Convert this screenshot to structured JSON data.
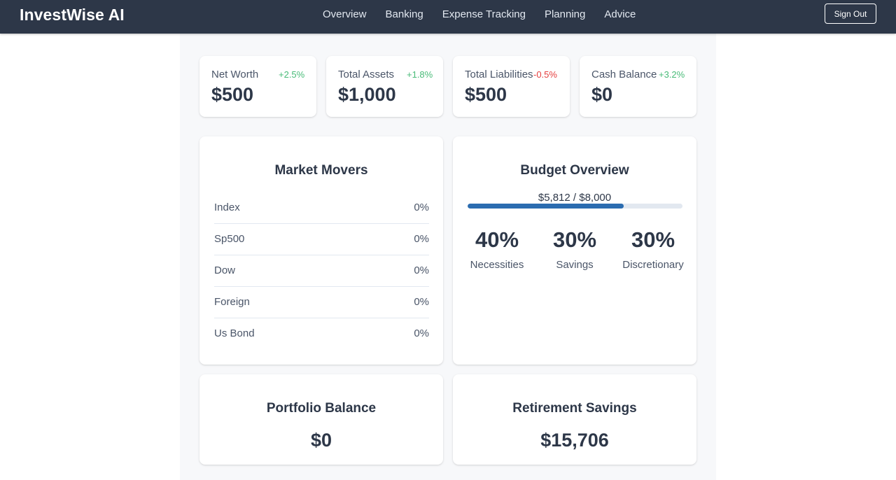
{
  "header": {
    "brand": "InvestWise AI",
    "nav": [
      "Overview",
      "Banking",
      "Expense Tracking",
      "Planning",
      "Advice"
    ],
    "sign_out": "Sign Out"
  },
  "stats": [
    {
      "label": "Net Worth",
      "value": "$500",
      "change": "+2.5%",
      "trend": "up"
    },
    {
      "label": "Total Assets",
      "value": "$1,000",
      "change": "+1.8%",
      "trend": "up"
    },
    {
      "label": "Total Liabilities",
      "value": "$500",
      "change": "-0.5%",
      "trend": "down"
    },
    {
      "label": "Cash Balance",
      "value": "$0",
      "change": "+3.2%",
      "trend": "up"
    }
  ],
  "market_movers": {
    "title": "Market Movers",
    "rows": [
      {
        "name": "Index",
        "value": "0%"
      },
      {
        "name": "Sp500",
        "value": "0%"
      },
      {
        "name": "Dow",
        "value": "0%"
      },
      {
        "name": "Foreign",
        "value": "0%"
      },
      {
        "name": "Us Bond",
        "value": "0%"
      }
    ]
  },
  "budget": {
    "title": "Budget Overview",
    "amount_text": "$5,812 / $8,000",
    "progress_fraction": 0.7265,
    "splits": [
      {
        "pct": "40%",
        "label": "Necessities"
      },
      {
        "pct": "30%",
        "label": "Savings"
      },
      {
        "pct": "30%",
        "label": "Discretionary"
      }
    ]
  },
  "portfolio": {
    "title": "Portfolio Balance",
    "value": "$0"
  },
  "retirement": {
    "title": "Retirement Savings",
    "value": "$15,706"
  },
  "colors": {
    "navbar": "#2d3748",
    "positive": "#48bb78",
    "negative": "#e53e3e",
    "progress": "#2b6cb0"
  }
}
